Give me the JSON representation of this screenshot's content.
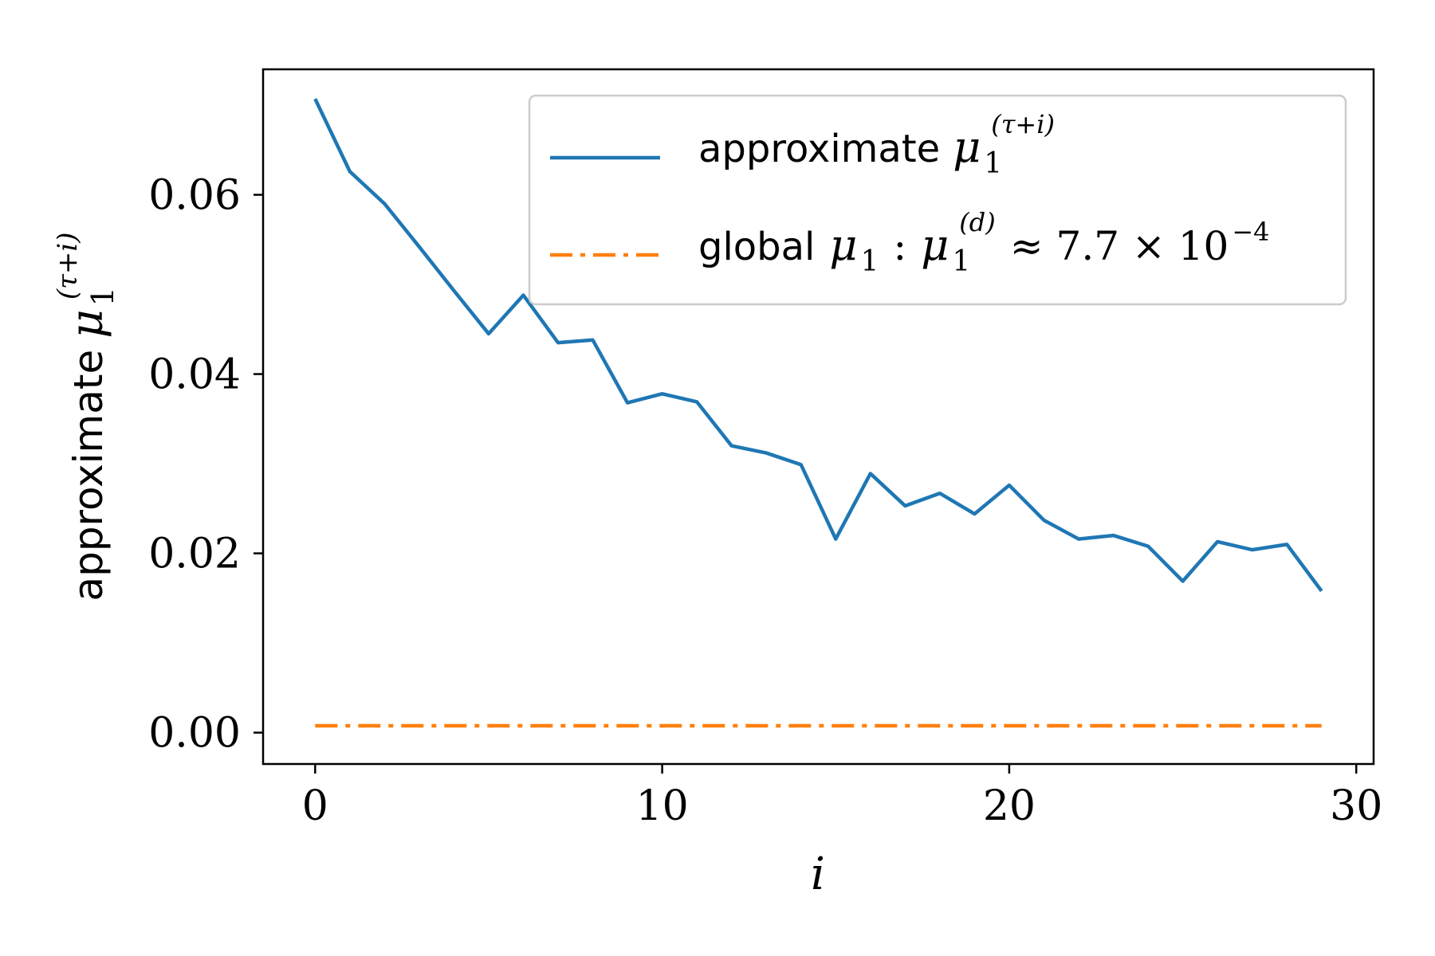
{
  "chart_data": {
    "type": "line",
    "xlabel": "i",
    "ylabel": {
      "text": "approximate",
      "symbol": "μ",
      "subscript": "1",
      "superscript": "(τ+i)"
    },
    "xlim": [
      -1.5,
      30.5
    ],
    "ylim": [
      -0.0035,
      0.074
    ],
    "x_ticks": [
      0,
      10,
      20,
      30
    ],
    "x_tick_labels": [
      "0",
      "10",
      "20",
      "30"
    ],
    "y_ticks": [
      0.0,
      0.02,
      0.04,
      0.06
    ],
    "y_tick_labels": [
      "0.00",
      "0.02",
      "0.04",
      "0.06"
    ],
    "grid": false,
    "legend_position": "top-right",
    "series": [
      {
        "name": "approximate μ1(τ+i)",
        "legend": {
          "text": "approximate",
          "symbol": "μ",
          "subscript": "1",
          "superscript": "(τ+i)"
        },
        "color": "#1f77b4",
        "line_style": "solid",
        "x": [
          0,
          1,
          2,
          3,
          4,
          5,
          6,
          7,
          8,
          9,
          10,
          11,
          12,
          13,
          14,
          15,
          16,
          17,
          18,
          19,
          20,
          21,
          22,
          23,
          24,
          25,
          26,
          27,
          28,
          29
        ],
        "values": [
          0.0707,
          0.0626,
          0.059,
          0.0542,
          0.0493,
          0.0445,
          0.0488,
          0.0435,
          0.0438,
          0.0368,
          0.0378,
          0.0369,
          0.032,
          0.0312,
          0.0299,
          0.0216,
          0.0289,
          0.0253,
          0.0267,
          0.0244,
          0.0276,
          0.0237,
          0.0216,
          0.022,
          0.0208,
          0.0169,
          0.0213,
          0.0204,
          0.021,
          0.0158
        ]
      },
      {
        "name": "global μ1 : μ1(d) ≈ 7.7 × 10−4",
        "legend": {
          "text": "global",
          "symbol": "μ",
          "subscript": "1",
          "sep": ":",
          "symbol2": "μ",
          "subscript2": "1",
          "superscript2": "(d)",
          "approx": "≈ 7.7 × 10",
          "exponent": "−4"
        },
        "color": "#ff7f0e",
        "line_style": "dashdot",
        "x": [
          0,
          29
        ],
        "values": [
          0.00077,
          0.00077
        ]
      }
    ]
  }
}
